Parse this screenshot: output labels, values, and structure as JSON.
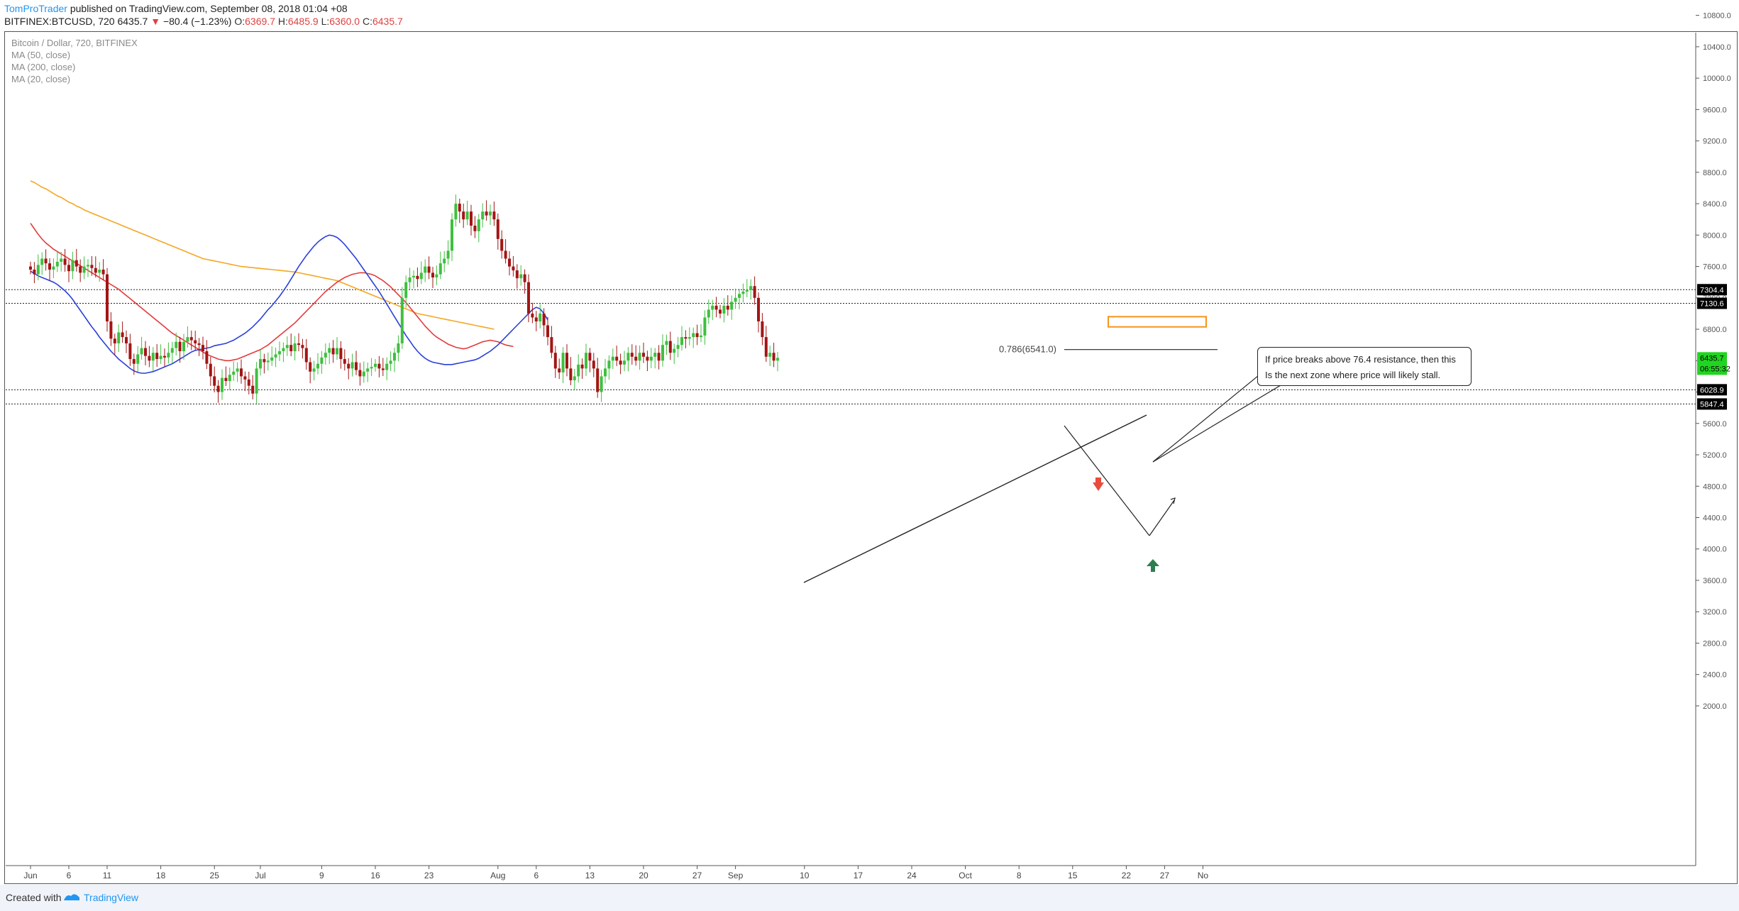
{
  "header": {
    "author": "TomProTrader",
    "published_text": "published on TradingView.com, September 08, 2018 01:04 +08",
    "symbol": "BITFINEX:BTCUSD, 720",
    "last": "6435.7",
    "change": "−80.4 (−1.23%)",
    "open_label": "O:",
    "open": "6369.7",
    "high_label": "H:",
    "high": "6485.9",
    "low_label": "L:",
    "low": "6360.0",
    "close_label": "C:",
    "close": "6435.7"
  },
  "legend": {
    "title": "Bitcoin / Dollar, 720, BITFINEX",
    "ma1": "MA (50, close)",
    "ma2": "MA (200, close)",
    "ma3": "MA (20, close)"
  },
  "callout": {
    "line1": "If price breaks above 76.4 resistance, then this",
    "line2": "Is the next zone where price will likely stall."
  },
  "footer": {
    "created_with": "Created with",
    "brand": "TradingView"
  },
  "colors": {
    "up": "#3fbf3f",
    "down": "#a31515",
    "ma20": "#2a3fd8",
    "ma50": "#e33b3b",
    "ma200": "#f5a623",
    "zone": "#f7931a",
    "arrow_down": "#e74c3c",
    "arrow_up": "#2e7d4f"
  },
  "chart_data": {
    "type": "candlestick",
    "ylim": [
      1800,
      12600
    ],
    "y_ticks": [
      2000,
      2400,
      2800,
      3200,
      3600,
      4000,
      4400,
      4800,
      5200,
      5600,
      6000,
      6400,
      6800,
      7200,
      7600,
      8000,
      8400,
      8800,
      9200,
      9600,
      10000,
      10400,
      10800,
      11200,
      11600,
      12000,
      12400
    ],
    "x_ticks": [
      {
        "label": "Jun",
        "day": 0
      },
      {
        "label": "6",
        "day": 5
      },
      {
        "label": "11",
        "day": 10
      },
      {
        "label": "18",
        "day": 17
      },
      {
        "label": "25",
        "day": 24
      },
      {
        "label": "Jul",
        "day": 30
      },
      {
        "label": "9",
        "day": 38
      },
      {
        "label": "16",
        "day": 45
      },
      {
        "label": "23",
        "day": 52
      },
      {
        "label": "Aug",
        "day": 61
      },
      {
        "label": "6",
        "day": 66
      },
      {
        "label": "13",
        "day": 73
      },
      {
        "label": "20",
        "day": 80
      },
      {
        "label": "27",
        "day": 87
      },
      {
        "label": "Sep",
        "day": 92
      },
      {
        "label": "10",
        "day": 101
      },
      {
        "label": "17",
        "day": 108
      },
      {
        "label": "24",
        "day": 115
      },
      {
        "label": "Oct",
        "day": 122
      },
      {
        "label": "8",
        "day": 129
      },
      {
        "label": "15",
        "day": 136
      },
      {
        "label": "22",
        "day": 143
      },
      {
        "label": "27",
        "day": 148
      },
      {
        "label": "No",
        "day": 153
      }
    ],
    "price_levels": [
      {
        "value": 7304.4,
        "label": "7304.4"
      },
      {
        "value": 7130.6,
        "label": "7130.6"
      },
      {
        "value": 6028.9,
        "label": "6028.9"
      },
      {
        "value": 5847.4,
        "label": "5847.4"
      }
    ],
    "last_price": {
      "value": 6435.7,
      "label": "6435.7",
      "timer": "06:55:32"
    },
    "fib_label": "0.786(6541.0)",
    "fib_value": 6541,
    "resistance_zone": [
      6830,
      6960
    ],
    "closes": [
      7560,
      7500,
      7620,
      7700,
      7640,
      7560,
      7600,
      7660,
      7700,
      7620,
      7540,
      7680,
      7600,
      7520,
      7600,
      7620,
      7580,
      7520,
      7560,
      7500,
      6900,
      6680,
      6620,
      6760,
      6700,
      6620,
      6420,
      6360,
      6480,
      6560,
      6460,
      6400,
      6500,
      6420,
      6460,
      6440,
      6500,
      6560,
      6640,
      6520,
      6640,
      6700,
      6660,
      6620,
      6600,
      6520,
      6360,
      6200,
      6080,
      6000,
      6180,
      6140,
      6220,
      6260,
      6300,
      6200,
      6160,
      6080,
      5980,
      6300,
      6420,
      6380,
      6400,
      6440,
      6480,
      6520,
      6560,
      6600,
      6520,
      6620,
      6600,
      6560,
      6380,
      6260,
      6300,
      6360,
      6440,
      6500,
      6560,
      6480,
      6560,
      6420,
      6360,
      6300,
      6380,
      6280,
      6200,
      6260,
      6300,
      6320,
      6360,
      6300,
      6280,
      6360,
      6400,
      6500,
      6620,
      7200,
      7400,
      7460,
      7480,
      7440,
      7520,
      7600,
      7520,
      7460,
      7500,
      7640,
      7700,
      7800,
      8200,
      8400,
      8300,
      8200,
      8300,
      8120,
      8050,
      8200,
      8300,
      8250,
      8300,
      8200,
      7950,
      7800,
      7700,
      7600,
      7550,
      7450,
      7500,
      7400,
      7000,
      6950,
      6900,
      7000,
      6850,
      6700,
      6500,
      6300,
      6250,
      6500,
      6300,
      6150,
      6200,
      6350,
      6300,
      6500,
      6400,
      6300,
      6000,
      6200,
      6300,
      6400,
      6450,
      6400,
      6350,
      6400,
      6500,
      6450,
      6400,
      6500,
      6450,
      6400,
      6450,
      6500,
      6400,
      6600,
      6650,
      6500,
      6550,
      6600,
      6700,
      6680,
      6700,
      6750,
      6700,
      6720,
      6950,
      7050,
      7100,
      7050,
      7000,
      7100,
      7050,
      7150,
      7200,
      7250,
      7280,
      7300,
      7350,
      7200,
      6900,
      6700,
      6450,
      6500,
      6400,
      6435.7
    ],
    "ma20": [
      7540,
      7510,
      7480,
      7460,
      7440,
      7420,
      7400,
      7370,
      7330,
      7290,
      7240,
      7180,
      7110,
      7040,
      6970,
      6900,
      6830,
      6770,
      6700,
      6640,
      6580,
      6520,
      6470,
      6420,
      6380,
      6340,
      6300,
      6270,
      6250,
      6240,
      6240,
      6250,
      6260,
      6280,
      6300,
      6320,
      6340,
      6360,
      6390,
      6420,
      6450,
      6480,
      6510,
      6530,
      6540,
      6550,
      6560,
      6570,
      6590,
      6600,
      6610,
      6620,
      6640,
      6660,
      6690,
      6720,
      6750,
      6790,
      6830,
      6880,
      6930,
      6990,
      7050,
      7100,
      7160,
      7220,
      7290,
      7360,
      7440,
      7520,
      7600,
      7670,
      7740,
      7800,
      7860,
      7910,
      7950,
      7980,
      8000,
      7990,
      7970,
      7930,
      7880,
      7820,
      7760,
      7700,
      7630,
      7560,
      7490,
      7420,
      7350,
      7280,
      7200,
      7120,
      7040,
      6960,
      6880,
      6800,
      6720,
      6650,
      6580,
      6520,
      6470,
      6430,
      6400,
      6380,
      6370,
      6360,
      6350,
      6350,
      6350,
      6360,
      6370,
      6380,
      6390,
      6400,
      6410,
      6430,
      6460,
      6490,
      6520,
      6560,
      6600,
      6650,
      6700,
      6750,
      6800,
      6850,
      6900,
      6950,
      7000,
      7050,
      7080,
      7060,
      7000,
      6920
    ],
    "ma50": [
      8150,
      8080,
      8010,
      7950,
      7900,
      7860,
      7820,
      7790,
      7760,
      7730,
      7700,
      7670,
      7640,
      7610,
      7580,
      7550,
      7520,
      7490,
      7460,
      7430,
      7400,
      7370,
      7340,
      7310,
      7270,
      7230,
      7190,
      7150,
      7110,
      7070,
      7030,
      6990,
      6950,
      6910,
      6870,
      6830,
      6790,
      6750,
      6720,
      6690,
      6660,
      6630,
      6600,
      6570,
      6540,
      6510,
      6480,
      6460,
      6440,
      6420,
      6410,
      6400,
      6400,
      6410,
      6420,
      6440,
      6460,
      6480,
      6500,
      6520,
      6540,
      6570,
      6600,
      6640,
      6680,
      6720,
      6760,
      6800,
      6840,
      6880,
      6930,
      6980,
      7030,
      7080,
      7130,
      7180,
      7230,
      7280,
      7320,
      7360,
      7400,
      7430,
      7460,
      7480,
      7500,
      7510,
      7520,
      7520,
      7510,
      7500,
      7480,
      7450,
      7420,
      7380,
      7340,
      7290,
      7240,
      7190,
      7140,
      7080,
      7020,
      6960,
      6900,
      6840,
      6790,
      6740,
      6700,
      6670,
      6640,
      6610,
      6590,
      6570,
      6560,
      6550,
      6560,
      6580,
      6600,
      6620,
      6640,
      6650,
      6660,
      6650,
      6640,
      6620,
      6600,
      6590,
      6580
    ],
    "ma200": [
      8690,
      8670,
      8640,
      8610,
      8590,
      8560,
      8530,
      8500,
      8480,
      8450,
      8420,
      8400,
      8370,
      8350,
      8320,
      8300,
      8280,
      8260,
      8240,
      8220,
      8200,
      8180,
      8160,
      8140,
      8120,
      8100,
      8080,
      8060,
      8040,
      8020,
      8000,
      7980,
      7960,
      7940,
      7920,
      7900,
      7880,
      7860,
      7840,
      7820,
      7800,
      7780,
      7760,
      7740,
      7720,
      7700,
      7690,
      7680,
      7670,
      7660,
      7650,
      7640,
      7630,
      7620,
      7610,
      7600,
      7595,
      7590,
      7585,
      7580,
      7575,
      7570,
      7565,
      7560,
      7555,
      7550,
      7545,
      7540,
      7535,
      7530,
      7520,
      7510,
      7500,
      7490,
      7480,
      7470,
      7460,
      7450,
      7440,
      7430,
      7420,
      7400,
      7380,
      7360,
      7340,
      7320,
      7300,
      7280,
      7260,
      7240,
      7220,
      7200,
      7180,
      7160,
      7140,
      7120,
      7100,
      7080,
      7060,
      7040,
      7020,
      7000,
      6990,
      6980,
      6970,
      6960,
      6950,
      6940,
      6930,
      6920,
      6910,
      6900,
      6890,
      6880,
      6870,
      6860,
      6850,
      6840,
      6830,
      6820,
      6810,
      6800
    ]
  }
}
